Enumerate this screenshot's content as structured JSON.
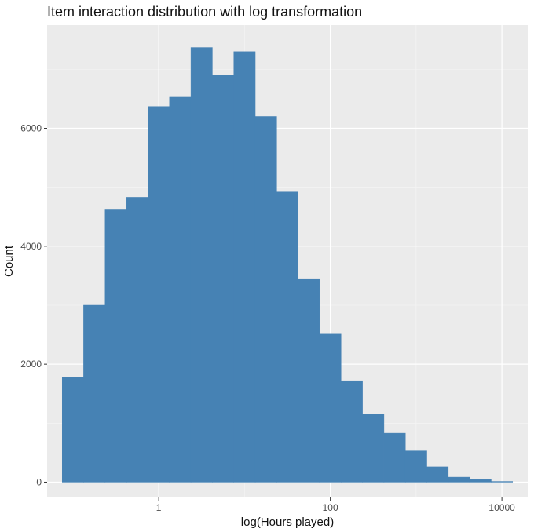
{
  "chart_data": {
    "type": "bar",
    "title": "Item interaction distribution with log transformation",
    "xlabel": "log(Hours played)",
    "ylabel": "Count",
    "x_scale": "log10",
    "xlim": [
      0.05,
      20000
    ],
    "ylim": [
      -260,
      7750
    ],
    "x_ticks": [
      1,
      100,
      10000
    ],
    "x_tick_labels": [
      "1",
      "100",
      "10000"
    ],
    "y_ticks": [
      0,
      2000,
      4000,
      6000
    ],
    "y_tick_labels": [
      "0",
      "2000",
      "4000",
      "6000"
    ],
    "grid": true,
    "bin_edges": [
      0.075,
      0.133,
      0.237,
      0.422,
      0.75,
      1.334,
      2.372,
      4.217,
      7.499,
      13.335,
      23.714,
      42.169,
      74.989,
      133.35,
      237.14,
      421.69,
      749.89,
      1333.5,
      2371.4,
      4216.9,
      7498.9,
      13335
    ],
    "values": [
      1780,
      3000,
      4630,
      4830,
      6370,
      6540,
      7370,
      6900,
      7300,
      6200,
      4920,
      3450,
      2510,
      1720,
      1160,
      830,
      530,
      260,
      85,
      45,
      12
    ],
    "bar_color": "#4682B4"
  }
}
